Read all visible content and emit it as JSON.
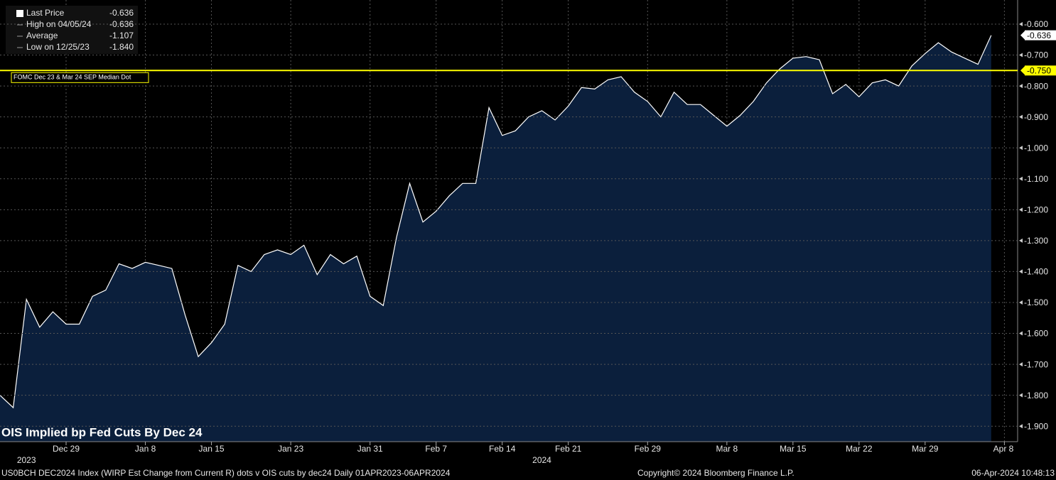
{
  "chart_data": {
    "type": "area",
    "title": "OIS Implied bp Fed Cuts By Dec 24",
    "x": [
      "2023-12-22",
      "2023-12-25",
      "2023-12-26",
      "2023-12-27",
      "2023-12-28",
      "2023-12-29",
      "2024-01-01",
      "2024-01-02",
      "2024-01-03",
      "2024-01-04",
      "2024-01-05",
      "2024-01-08",
      "2024-01-09",
      "2024-01-10",
      "2024-01-11",
      "2024-01-12",
      "2024-01-15",
      "2024-01-16",
      "2024-01-17",
      "2024-01-18",
      "2024-01-19",
      "2024-01-22",
      "2024-01-23",
      "2024-01-24",
      "2024-01-25",
      "2024-01-26",
      "2024-01-29",
      "2024-01-30",
      "2024-01-31",
      "2024-02-01",
      "2024-02-02",
      "2024-02-05",
      "2024-02-06",
      "2024-02-07",
      "2024-02-08",
      "2024-02-09",
      "2024-02-12",
      "2024-02-13",
      "2024-02-14",
      "2024-02-15",
      "2024-02-16",
      "2024-02-19",
      "2024-02-20",
      "2024-02-21",
      "2024-02-22",
      "2024-02-23",
      "2024-02-26",
      "2024-02-27",
      "2024-02-28",
      "2024-02-29",
      "2024-03-01",
      "2024-03-04",
      "2024-03-05",
      "2024-03-06",
      "2024-03-07",
      "2024-03-08",
      "2024-03-11",
      "2024-03-12",
      "2024-03-13",
      "2024-03-14",
      "2024-03-15",
      "2024-03-18",
      "2024-03-19",
      "2024-03-20",
      "2024-03-21",
      "2024-03-22",
      "2024-03-25",
      "2024-03-26",
      "2024-03-27",
      "2024-03-28",
      "2024-03-29",
      "2024-04-01",
      "2024-04-02",
      "2024-04-03",
      "2024-04-04",
      "2024-04-05"
    ],
    "series": [
      {
        "name": "Last Price",
        "color": "#ffffff",
        "fill": "#0b1f3c",
        "values": [
          -1.8,
          -1.84,
          -1.49,
          -1.58,
          -1.53,
          -1.57,
          -1.57,
          -1.48,
          -1.46,
          -1.375,
          -1.39,
          -1.37,
          -1.38,
          -1.39,
          -1.54,
          -1.675,
          -1.63,
          -1.57,
          -1.38,
          -1.4,
          -1.345,
          -1.33,
          -1.345,
          -1.315,
          -1.41,
          -1.345,
          -1.375,
          -1.35,
          -1.48,
          -1.51,
          -1.29,
          -1.115,
          -1.24,
          -1.205,
          -1.155,
          -1.115,
          -1.115,
          -0.87,
          -0.96,
          -0.945,
          -0.9,
          -0.88,
          -0.91,
          -0.865,
          -0.805,
          -0.81,
          -0.78,
          -0.77,
          -0.82,
          -0.85,
          -0.9,
          -0.82,
          -0.86,
          -0.86,
          -0.895,
          -0.93,
          -0.895,
          -0.85,
          -0.79,
          -0.745,
          -0.71,
          -0.705,
          -0.715,
          -0.825,
          -0.795,
          -0.835,
          -0.79,
          -0.78,
          -0.8,
          -0.735,
          -0.695,
          -0.66,
          -0.69,
          -0.71,
          -0.73,
          -0.636
        ],
        "value_labels": [
          null,
          null,
          null,
          null,
          null,
          null,
          null,
          null,
          null,
          null,
          null,
          null,
          null,
          null,
          null,
          null,
          null,
          null,
          null,
          null,
          null,
          null,
          null,
          null,
          null,
          null,
          null,
          null,
          null,
          null,
          null,
          null,
          null,
          null,
          null,
          null,
          null,
          null,
          null,
          null,
          null,
          null,
          null,
          null,
          null,
          null,
          null,
          null,
          null,
          null,
          null,
          null,
          null,
          null,
          null,
          null,
          null,
          null,
          null,
          null,
          null,
          null,
          null,
          null,
          null,
          null,
          null,
          null,
          null,
          null,
          null,
          null,
          null,
          null,
          null,
          "-0.636"
        ]
      }
    ],
    "hline": {
      "value": -0.75,
      "label": "-0.750",
      "text": "FOMC Dec 23 & Mar 24 SEP Median Dot",
      "color": "#ffff00"
    },
    "legend": [
      {
        "label": "Last Price",
        "value": "-0.636"
      },
      {
        "label": "High on 04/05/24",
        "value": "-0.636"
      },
      {
        "label": "Average",
        "value": "-1.107"
      },
      {
        "label": "Low on 12/25/23",
        "value": "-1.840"
      }
    ],
    "xlim": [
      "2023-12-22",
      "2024-04-09"
    ],
    "xticks": [
      {
        "value": "2023-12-29",
        "label": "Dec 29"
      },
      {
        "value": "2024-01-08",
        "label": "Jan 8"
      },
      {
        "value": "2024-01-15",
        "label": "Jan 15"
      },
      {
        "value": "2024-01-23",
        "label": "Jan 23"
      },
      {
        "value": "2024-01-31",
        "label": "Jan 31"
      },
      {
        "value": "2024-02-07",
        "label": "Feb 7"
      },
      {
        "value": "2024-02-14",
        "label": "Feb 14"
      },
      {
        "value": "2024-02-21",
        "label": "Feb 21"
      },
      {
        "value": "2024-02-29",
        "label": "Feb 29"
      },
      {
        "value": "2024-03-08",
        "label": "Mar 8"
      },
      {
        "value": "2024-03-15",
        "label": "Mar 15"
      },
      {
        "value": "2024-03-22",
        "label": "Mar 22"
      },
      {
        "value": "2024-03-29",
        "label": "Mar 29"
      },
      {
        "value": "2024-04-08",
        "label": "Apr 8"
      }
    ],
    "years": [
      {
        "value": "2023-12-26",
        "label": "2023"
      },
      {
        "value": "2024-02-19",
        "label": "2024"
      }
    ],
    "ylim": [
      -1.95,
      -0.522
    ],
    "yticks": [
      {
        "value": -0.6,
        "label": "-0.600"
      },
      {
        "value": -0.7,
        "label": "-0.700"
      },
      {
        "value": -0.8,
        "label": "-0.800"
      },
      {
        "value": -0.9,
        "label": "-0.900"
      },
      {
        "value": -1.0,
        "label": "-1.000"
      },
      {
        "value": -1.1,
        "label": "-1.100"
      },
      {
        "value": -1.2,
        "label": "-1.200"
      },
      {
        "value": -1.3,
        "label": "-1.300"
      },
      {
        "value": -1.4,
        "label": "-1.400"
      },
      {
        "value": -1.5,
        "label": "-1.500"
      },
      {
        "value": -1.6,
        "label": "-1.600"
      },
      {
        "value": -1.7,
        "label": "-1.700"
      },
      {
        "value": -1.8,
        "label": "-1.800"
      },
      {
        "value": -1.9,
        "label": "-1.900"
      }
    ],
    "grid": true,
    "footer": {
      "source": "US0BCH DEC2024 Index (WIRP Est Change from Current R) dots v OIS cuts by dec24  Daily 01APR2023-06APR2024",
      "copyright": "Copyright© 2024 Bloomberg Finance L.P.",
      "timestamp": "06-Apr-2024 10:48:13"
    }
  }
}
